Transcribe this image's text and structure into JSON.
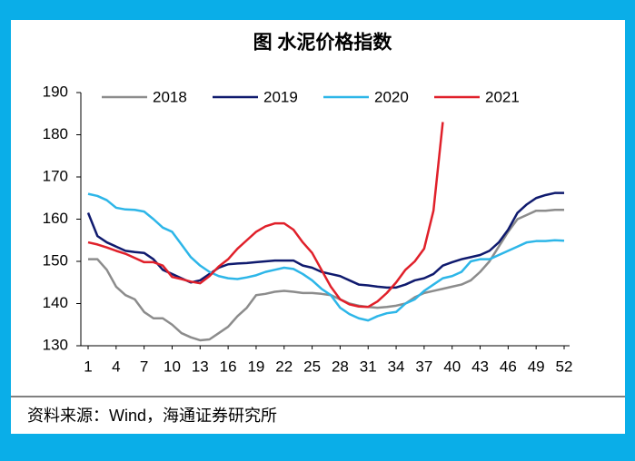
{
  "chart_data": {
    "type": "line",
    "title": "图  水泥价格指数",
    "source": "资料来源：Wind，海通证券研究所",
    "x": [
      1,
      2,
      3,
      4,
      5,
      6,
      7,
      8,
      9,
      10,
      11,
      12,
      13,
      14,
      15,
      16,
      17,
      18,
      19,
      20,
      21,
      22,
      23,
      24,
      25,
      26,
      27,
      28,
      29,
      30,
      31,
      32,
      33,
      34,
      35,
      36,
      37,
      38,
      39,
      40,
      41,
      42,
      43,
      44,
      45,
      46,
      47,
      48,
      49,
      50,
      51,
      52
    ],
    "xlim": [
      1,
      52
    ],
    "xticks": [
      1,
      4,
      7,
      10,
      13,
      16,
      19,
      22,
      25,
      28,
      31,
      34,
      37,
      40,
      43,
      46,
      49,
      52
    ],
    "ylim": [
      130,
      190
    ],
    "yticks": [
      130,
      140,
      150,
      160,
      170,
      180,
      190
    ],
    "series": [
      {
        "name": "2018",
        "color": "#8c8c8c",
        "values": [
          150.5,
          150.5,
          148,
          144,
          142,
          141,
          138,
          136.5,
          136.5,
          135,
          133,
          132,
          131.3,
          131.5,
          133,
          134.5,
          137,
          139,
          142,
          142.3,
          142.8,
          143,
          142.8,
          142.5,
          142.5,
          142.3,
          142,
          141,
          140,
          139.5,
          139.2,
          139,
          139.2,
          139.5,
          140,
          141.5,
          142.5,
          143,
          143.5,
          144,
          144.5,
          145.5,
          147.5,
          150,
          153.5,
          157,
          160,
          161,
          162,
          162,
          162.2,
          162.2
        ]
      },
      {
        "name": "2019",
        "color": "#0f1a6e",
        "values": [
          161.5,
          156,
          154.5,
          153.5,
          152.5,
          152.2,
          152,
          150.5,
          148,
          147,
          146,
          145,
          145.5,
          147,
          148.5,
          149.3,
          149.5,
          149.6,
          149.8,
          150,
          150.2,
          150.2,
          150.2,
          149,
          148.5,
          147.5,
          147,
          146.5,
          145.5,
          144.5,
          144.3,
          144,
          143.8,
          143.8,
          144.5,
          145.5,
          146,
          147,
          149,
          149.8,
          150.5,
          151,
          151.5,
          152.5,
          154.5,
          157.5,
          161.5,
          163.5,
          165,
          165.7,
          166.2,
          166.2
        ]
      },
      {
        "name": "2020",
        "color": "#2db6e8",
        "values": [
          166,
          165.5,
          164.5,
          162.7,
          162.3,
          162.2,
          161.8,
          160,
          158,
          157,
          154,
          151,
          149,
          147.5,
          146.5,
          146,
          145.8,
          146.2,
          146.7,
          147.5,
          148,
          148.5,
          148.2,
          147,
          145.5,
          143.5,
          142,
          139,
          137.5,
          136.5,
          136,
          137,
          137.7,
          138,
          140,
          141,
          143,
          144.5,
          146,
          146.5,
          147.5,
          150,
          150.5,
          150.5,
          151.5,
          152.5,
          153.5,
          154.5,
          154.8,
          154.8,
          155,
          154.9
        ]
      },
      {
        "name": "2021",
        "color": "#e0202a",
        "values": [
          154.5,
          154,
          153.3,
          152.5,
          151.8,
          150.8,
          149.8,
          149.8,
          149,
          146.3,
          145.8,
          145.2,
          144.8,
          146.5,
          148.8,
          150.5,
          153,
          155,
          157,
          158.3,
          159,
          159,
          157.5,
          154.5,
          152,
          148,
          144,
          141,
          139.8,
          139.3,
          139.2,
          140.5,
          142.5,
          145,
          148,
          150,
          153,
          162,
          183,
          null,
          null,
          null,
          null,
          null,
          null,
          null,
          null,
          null,
          null,
          null,
          null,
          null
        ]
      }
    ]
  }
}
